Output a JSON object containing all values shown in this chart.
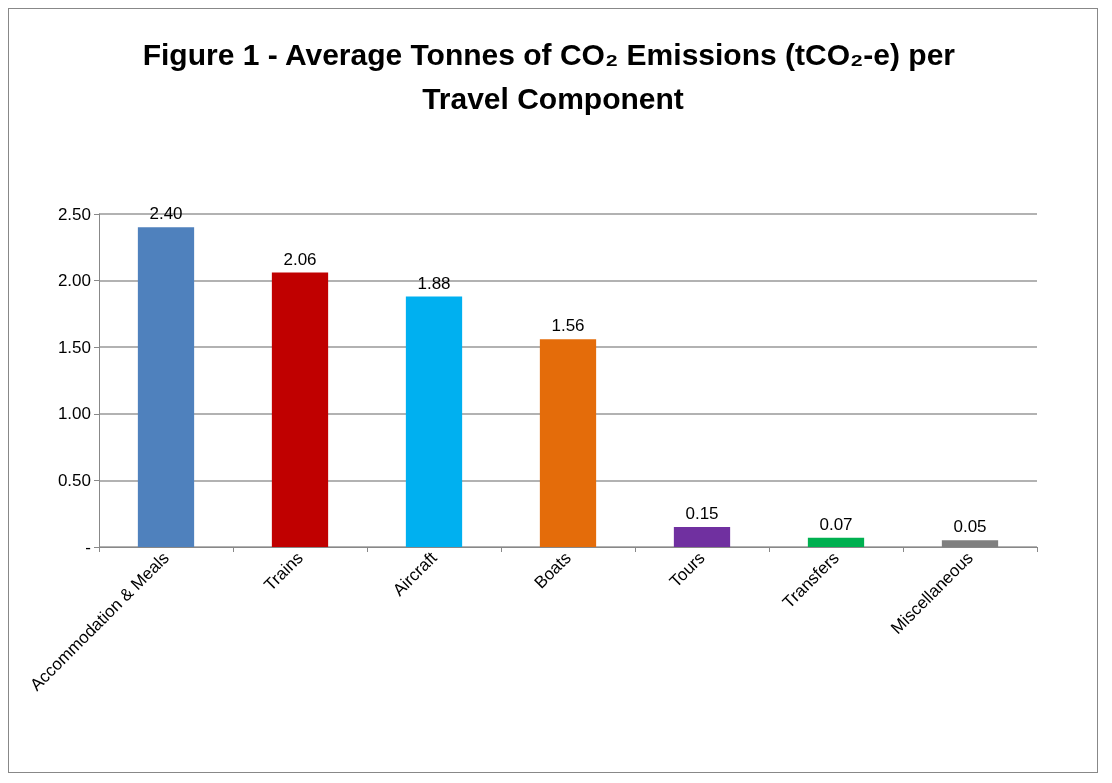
{
  "chart_data": {
    "type": "bar",
    "title": "Figure 1 - Average Tonnes of CO₂ Emissions (tCO₂-e) per Travel Component",
    "categories": [
      "Accommodation & Meals",
      "Trains",
      "Aircraft",
      "Boats",
      "Tours",
      "Transfers",
      "Miscellaneous"
    ],
    "values": [
      2.4,
      2.06,
      1.88,
      1.56,
      0.15,
      0.07,
      0.05
    ],
    "value_labels": [
      "2.40",
      "2.06",
      "1.88",
      "1.56",
      "0.15",
      "0.07",
      "0.05"
    ],
    "colors": [
      "#4f81bd",
      "#c00000",
      "#00b0f0",
      "#e46c0a",
      "#7030a0",
      "#00b050",
      "#7f7f7f"
    ],
    "ylim": [
      0,
      2.5
    ],
    "yticks": [
      {
        "value": 0,
        "label": "-"
      },
      {
        "value": 0.5,
        "label": "0.50"
      },
      {
        "value": 1,
        "label": "1.00"
      },
      {
        "value": 1.5,
        "label": "1.50"
      },
      {
        "value": 2,
        "label": "2.00"
      },
      {
        "value": 2.5,
        "label": "2.50"
      }
    ],
    "grid": "y"
  }
}
